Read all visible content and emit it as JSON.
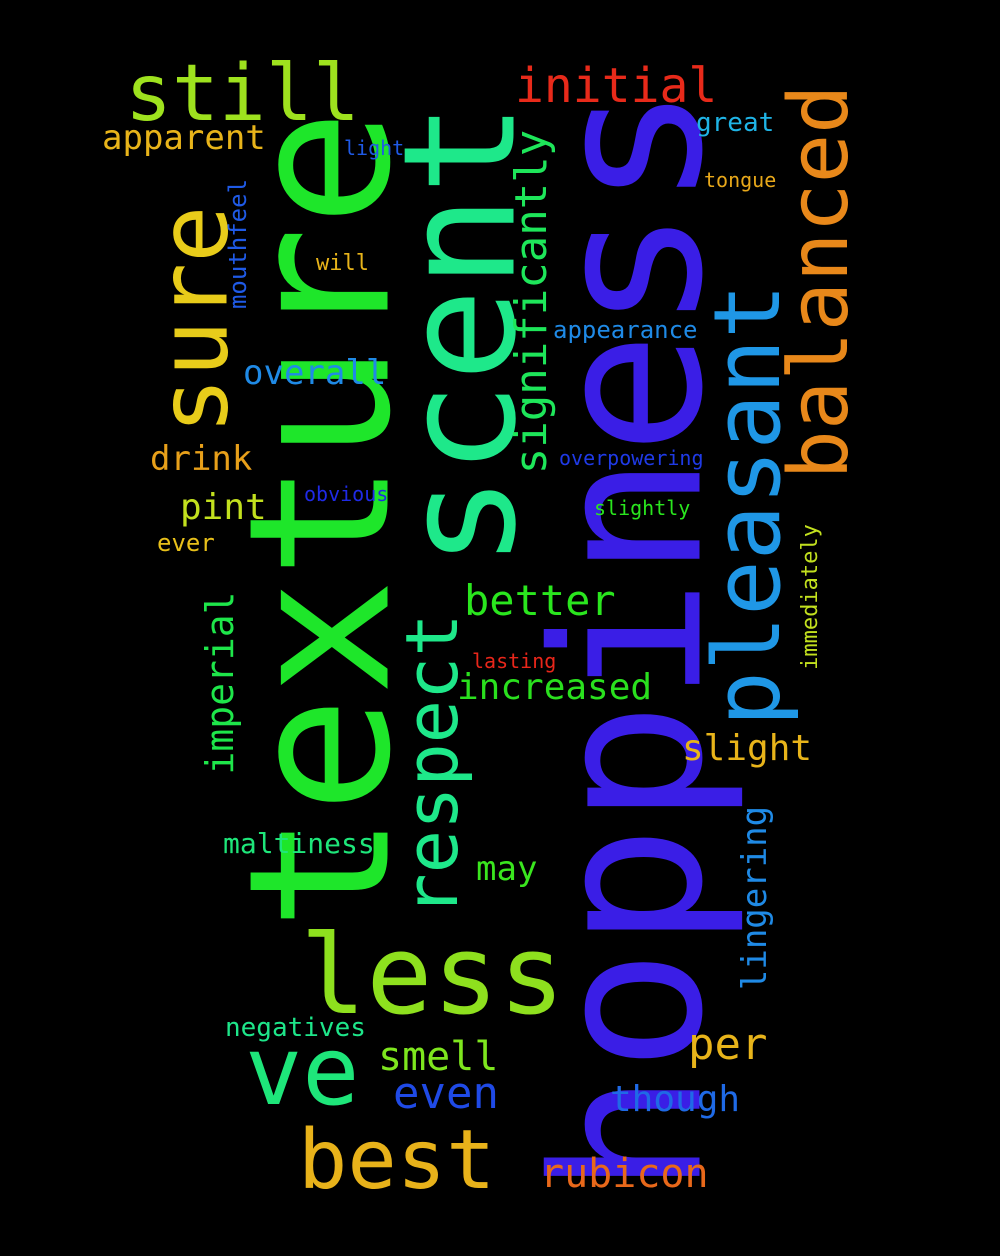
{
  "words": [
    {
      "text": "hoppiness",
      "color": "#3a1ee6"
    },
    {
      "text": "texture",
      "color": "#1ee62a"
    },
    {
      "text": "scent",
      "color": "#1ee88a"
    },
    {
      "text": "less",
      "color": "#8ee01e"
    },
    {
      "text": "sure",
      "color": "#e8cc1a"
    },
    {
      "text": "pleasant",
      "color": "#1f97e6"
    },
    {
      "text": "still",
      "color": "#9ee21e"
    },
    {
      "text": "balanced",
      "color": "#e8881a"
    },
    {
      "text": "ve",
      "color": "#1ee67a"
    },
    {
      "text": "best",
      "color": "#e8b21a"
    },
    {
      "text": "respect",
      "color": "#1ee88a"
    },
    {
      "text": "initial",
      "color": "#e82a1a"
    },
    {
      "text": "significantly",
      "color": "#1ee65a"
    },
    {
      "text": "apparent",
      "color": "#e8b41a"
    },
    {
      "text": "overall",
      "color": "#1f8ae6"
    },
    {
      "text": "drink",
      "color": "#e8a01a"
    },
    {
      "text": "pint",
      "color": "#c2e01e"
    },
    {
      "text": "better",
      "color": "#2ae61e"
    },
    {
      "text": "increased",
      "color": "#2ae01e"
    },
    {
      "text": "imperial",
      "color": "#1ee64a"
    },
    {
      "text": "slight",
      "color": "#e8b41a"
    },
    {
      "text": "maltiness",
      "color": "#1ee67a"
    },
    {
      "text": "may",
      "color": "#3ae61e"
    },
    {
      "text": "lingering",
      "color": "#1f8ae6"
    },
    {
      "text": "per",
      "color": "#e8b41a"
    },
    {
      "text": "smell",
      "color": "#7ee61e"
    },
    {
      "text": "even",
      "color": "#1f4ae6"
    },
    {
      "text": "though",
      "color": "#1f6ae6"
    },
    {
      "text": "rubicon",
      "color": "#e8681a"
    },
    {
      "text": "negatives",
      "color": "#1ee68a"
    },
    {
      "text": "great",
      "color": "#1fb4e6"
    },
    {
      "text": "light",
      "color": "#1f5ae6"
    },
    {
      "text": "tongue",
      "color": "#e8a81a"
    },
    {
      "text": "mouthfeel",
      "color": "#1f5ae6"
    },
    {
      "text": "will",
      "color": "#e8b41a"
    },
    {
      "text": "appearance",
      "color": "#1f8ae6"
    },
    {
      "text": "overpowering",
      "color": "#1f3ae6"
    },
    {
      "text": "obvious",
      "color": "#1f2ae6"
    },
    {
      "text": "slightly",
      "color": "#2ae61e"
    },
    {
      "text": "ever",
      "color": "#e8c01a"
    },
    {
      "text": "immediately",
      "color": "#c2e01e"
    },
    {
      "text": "lasting",
      "color": "#e8261a"
    }
  ]
}
